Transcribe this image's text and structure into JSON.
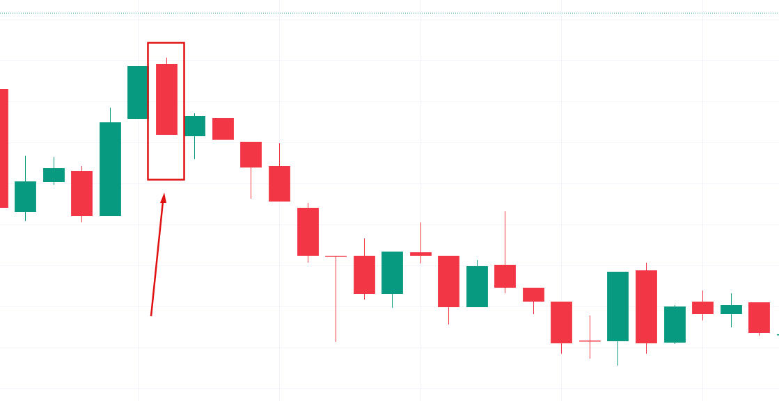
{
  "chart_data": {
    "type": "candlestick",
    "open": [
      449,
      272,
      315,
      331,
      266,
      406,
      485,
      381,
      407,
      373,
      338,
      278,
      209,
      209,
      154,
      214,
      209,
      135,
      196,
      163,
      143,
      87,
      86,
      188,
      84,
      143,
      125,
      142,
      95
    ],
    "high": [
      449,
      353,
      351,
      338,
      422,
      482,
      494,
      414,
      407,
      373,
      371,
      285,
      209,
      234,
      215,
      257,
      209,
      203,
      273,
      163,
      143,
      123,
      186,
      199,
      138,
      159,
      155,
      142,
      96
    ],
    "low": [
      278,
      259,
      311,
      257,
      266,
      406,
      383,
      348,
      376,
      291,
      287,
      199,
      85,
      146,
      134,
      198,
      110,
      135,
      155,
      125,
      68,
      61,
      51,
      68,
      82,
      116,
      106,
      94,
      95
    ],
    "close": [
      278,
      316,
      335,
      266,
      401,
      482,
      383,
      410,
      376,
      336,
      287,
      209,
      208,
      154,
      215,
      209,
      135,
      194,
      163,
      143,
      83,
      86,
      186,
      83,
      136,
      125,
      138,
      98,
      96
    ],
    "up_color": "#089981",
    "down_color": "#f23645",
    "xlim": [
      0.11,
      27.71
    ],
    "xticks": [
      5,
      10,
      15,
      20,
      25
    ],
    "ylim": [
      0,
      577
    ],
    "yticks": [
      18,
      77,
      136,
      195,
      254,
      313,
      372,
      431,
      490,
      549
    ],
    "grid": true
  }
}
